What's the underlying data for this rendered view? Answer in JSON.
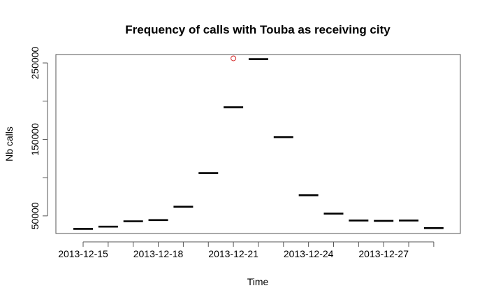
{
  "chart_data": {
    "type": "boxplot",
    "title": "Frequency of calls with Touba as receiving city",
    "xlabel": "Time",
    "ylabel": "Nb calls",
    "x_tick_labels": [
      "2013-12-15",
      "2013-12-18",
      "2013-12-21",
      "2013-12-24",
      "2013-12-27"
    ],
    "y_tick_labels": [
      "50000",
      "150000",
      "250000"
    ],
    "y_ticks": [
      50000,
      100000,
      150000,
      200000,
      250000
    ],
    "ylim": [
      27000,
      261000
    ],
    "categories": [
      "2013-12-15",
      "2013-12-16",
      "2013-12-17",
      "2013-12-18",
      "2013-12-19",
      "2013-12-20",
      "2013-12-21",
      "2013-12-22",
      "2013-12-23",
      "2013-12-24",
      "2013-12-25",
      "2013-12-26",
      "2013-12-27",
      "2013-12-28",
      "2013-12-29"
    ],
    "values": [
      33000,
      36000,
      43000,
      44500,
      62000,
      106000,
      192000,
      255000,
      153000,
      77000,
      53000,
      44000,
      43500,
      44000,
      34000
    ],
    "outliers": [
      {
        "category": "2013-12-21",
        "value": 256000
      }
    ],
    "grid": false,
    "colors": {
      "median": "#000000",
      "outlier": "#d62728",
      "frame": "#555555"
    }
  }
}
